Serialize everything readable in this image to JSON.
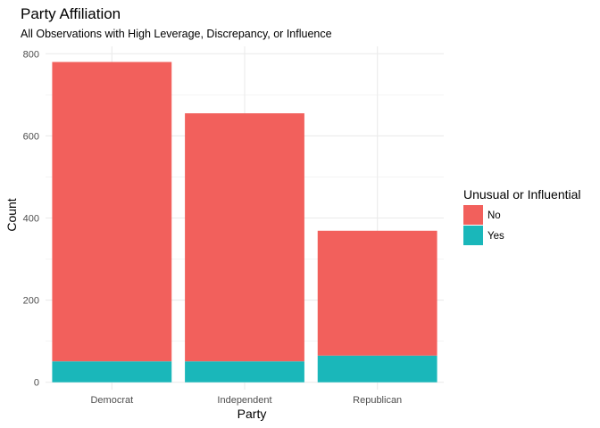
{
  "chart_data": {
    "type": "bar",
    "stacked": true,
    "title": "Party Affiliation",
    "subtitle": "All Observations with High Leverage, Discrepancy, or Influence",
    "xlabel": "Party",
    "ylabel": "Count",
    "categories": [
      "Democrat",
      "Independent",
      "Republican"
    ],
    "series": [
      {
        "name": "Yes",
        "color": "#1ab7ba",
        "values": [
          51,
          51,
          65
        ]
      },
      {
        "name": "No",
        "color": "#f2605c",
        "values": [
          729,
          604,
          304
        ]
      }
    ],
    "yticks": [
      0,
      200,
      400,
      600,
      800
    ],
    "ylim": [
      -18,
      818
    ],
    "grid": true,
    "legend": {
      "title": "Unusual or Influential",
      "position": "right",
      "entries": [
        {
          "label": "No",
          "color": "#f2605c"
        },
        {
          "label": "Yes",
          "color": "#1ab7ba"
        }
      ]
    }
  }
}
